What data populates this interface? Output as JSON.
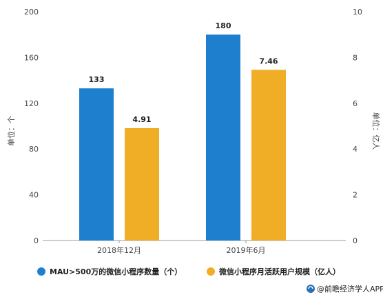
{
  "chart_data": {
    "type": "bar",
    "categories": [
      "2018年12月",
      "2019年6月"
    ],
    "series": [
      {
        "name": "MAU>500万的微信小程序数量（个）",
        "values": [
          133,
          180
        ],
        "axis": "left",
        "color": "#1f7fcf",
        "labels": [
          "133",
          "180"
        ]
      },
      {
        "name": "微信小程序月活跃用户规模（亿人）",
        "values": [
          4.91,
          7.46
        ],
        "axis": "right",
        "color": "#f0ae27",
        "labels": [
          "4.91",
          "7.46"
        ]
      }
    ],
    "ylabel": "单位：个",
    "y2label": "单位：亿人",
    "ylim": [
      0,
      200
    ],
    "y2lim": [
      0,
      10
    ],
    "yticks": [
      "0",
      "40",
      "80",
      "120",
      "160",
      "200"
    ],
    "y2ticks": [
      "0",
      "2",
      "4",
      "6",
      "8",
      "10"
    ],
    "grid": false,
    "legend": "bottom"
  },
  "source": {
    "icon": "logo-icon",
    "text": "@前瞻经济学人APP"
  }
}
